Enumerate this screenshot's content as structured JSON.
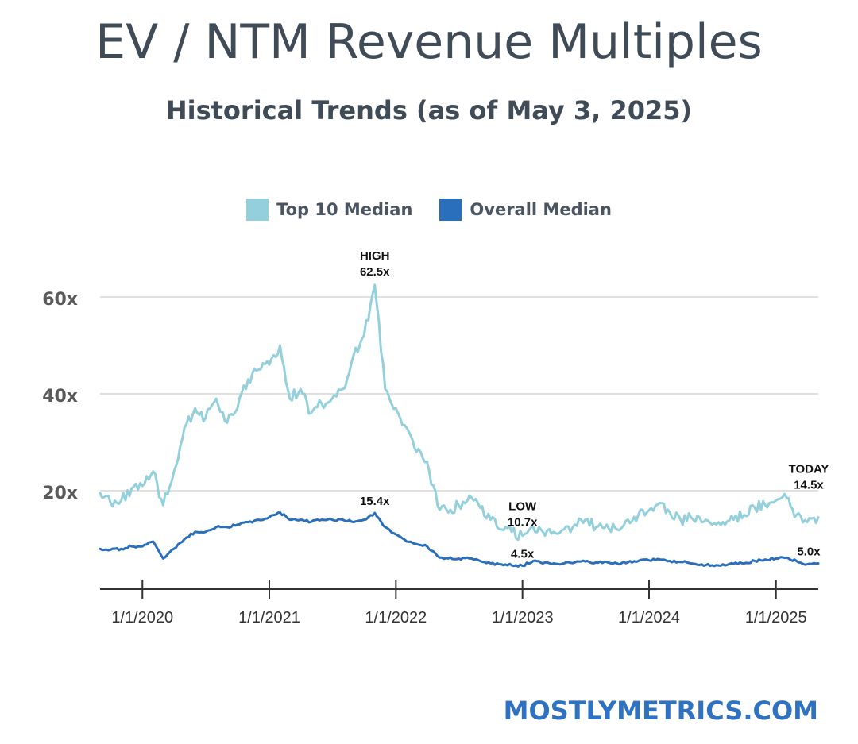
{
  "chart_data": {
    "type": "line",
    "title": "EV / NTM Revenue Multiples",
    "subtitle": "Historical Trends (as of May 3, 2025)",
    "x_ticks": [
      "1/1/2020",
      "1/1/2021",
      "1/1/2022",
      "1/1/2023",
      "1/1/2024",
      "1/1/2025"
    ],
    "x_range": [
      "2019-09-01",
      "2025-05-03"
    ],
    "y_ticks": [
      {
        "value": 20,
        "label": "20x"
      },
      {
        "value": 40,
        "label": "40x"
      },
      {
        "value": 60,
        "label": "60x"
      }
    ],
    "ylim": [
      0,
      65
    ],
    "grid": true,
    "legend_position": "top-center",
    "series": [
      {
        "name": "Top 10 Median",
        "color": "#93d0dc",
        "points": [
          [
            "2019-09-01",
            19.5
          ],
          [
            "2019-10-01",
            17.5
          ],
          [
            "2019-11-01",
            18.0
          ],
          [
            "2019-12-01",
            20.5
          ],
          [
            "2020-01-01",
            21.0
          ],
          [
            "2020-02-01",
            24.0
          ],
          [
            "2020-03-01",
            17.0
          ],
          [
            "2020-04-01",
            24.0
          ],
          [
            "2020-05-01",
            33.0
          ],
          [
            "2020-06-01",
            37.0
          ],
          [
            "2020-07-01",
            35.0
          ],
          [
            "2020-08-01",
            39.0
          ],
          [
            "2020-09-01",
            34.0
          ],
          [
            "2020-10-01",
            37.0
          ],
          [
            "2020-11-01",
            43.0
          ],
          [
            "2020-12-01",
            45.0
          ],
          [
            "2021-01-01",
            46.0
          ],
          [
            "2021-02-01",
            50.0
          ],
          [
            "2021-03-01",
            39.0
          ],
          [
            "2021-04-01",
            41.0
          ],
          [
            "2021-05-01",
            36.0
          ],
          [
            "2021-06-01",
            38.0
          ],
          [
            "2021-07-01",
            39.0
          ],
          [
            "2021-08-01",
            41.0
          ],
          [
            "2021-09-01",
            48.0
          ],
          [
            "2021-10-01",
            52.0
          ],
          [
            "2021-11-01",
            62.5
          ],
          [
            "2021-12-01",
            41.0
          ],
          [
            "2022-01-01",
            37.0
          ],
          [
            "2022-02-01",
            33.0
          ],
          [
            "2022-03-01",
            28.0
          ],
          [
            "2022-04-01",
            26.0
          ],
          [
            "2022-05-01",
            17.0
          ],
          [
            "2022-06-01",
            15.5
          ],
          [
            "2022-07-01",
            17.0
          ],
          [
            "2022-08-01",
            19.0
          ],
          [
            "2022-09-01",
            16.5
          ],
          [
            "2022-10-01",
            14.0
          ],
          [
            "2022-11-01",
            12.0
          ],
          [
            "2022-12-01",
            11.5
          ],
          [
            "2023-01-01",
            10.7
          ],
          [
            "2023-02-01",
            12.5
          ],
          [
            "2023-03-01",
            11.5
          ],
          [
            "2023-04-01",
            11.5
          ],
          [
            "2023-05-01",
            12.0
          ],
          [
            "2023-06-01",
            13.0
          ],
          [
            "2023-07-01",
            14.0
          ],
          [
            "2023-08-01",
            12.5
          ],
          [
            "2023-09-01",
            13.0
          ],
          [
            "2023-10-01",
            12.0
          ],
          [
            "2023-11-01",
            14.0
          ],
          [
            "2023-12-01",
            15.0
          ],
          [
            "2024-01-01",
            16.0
          ],
          [
            "2024-02-01",
            17.5
          ],
          [
            "2024-03-01",
            15.5
          ],
          [
            "2024-04-01",
            14.0
          ],
          [
            "2024-05-01",
            14.5
          ],
          [
            "2024-06-01",
            13.5
          ],
          [
            "2024-07-01",
            13.0
          ],
          [
            "2024-08-01",
            13.5
          ],
          [
            "2024-09-01",
            14.0
          ],
          [
            "2024-10-01",
            15.0
          ],
          [
            "2024-11-01",
            16.5
          ],
          [
            "2024-12-01",
            17.0
          ],
          [
            "2025-01-01",
            18.0
          ],
          [
            "2025-02-01",
            18.5
          ],
          [
            "2025-03-01",
            15.0
          ],
          [
            "2025-04-01",
            13.5
          ],
          [
            "2025-05-03",
            14.5
          ]
        ]
      },
      {
        "name": "Overall Median",
        "color": "#2a6fbb",
        "points": [
          [
            "2019-09-01",
            8.0
          ],
          [
            "2019-10-01",
            7.8
          ],
          [
            "2019-11-01",
            8.0
          ],
          [
            "2019-12-01",
            8.5
          ],
          [
            "2020-01-01",
            8.5
          ],
          [
            "2020-02-01",
            9.5
          ],
          [
            "2020-03-01",
            6.0
          ],
          [
            "2020-04-01",
            8.0
          ],
          [
            "2020-05-01",
            10.0
          ],
          [
            "2020-06-01",
            11.5
          ],
          [
            "2020-07-01",
            11.5
          ],
          [
            "2020-08-01",
            12.5
          ],
          [
            "2020-09-01",
            12.5
          ],
          [
            "2020-10-01",
            13.0
          ],
          [
            "2020-11-01",
            13.5
          ],
          [
            "2020-12-01",
            14.0
          ],
          [
            "2021-01-01",
            14.5
          ],
          [
            "2021-02-01",
            15.5
          ],
          [
            "2021-03-01",
            14.0
          ],
          [
            "2021-04-01",
            14.0
          ],
          [
            "2021-05-01",
            13.5
          ],
          [
            "2021-06-01",
            14.0
          ],
          [
            "2021-07-01",
            14.0
          ],
          [
            "2021-08-01",
            14.0
          ],
          [
            "2021-09-01",
            13.5
          ],
          [
            "2021-10-01",
            14.0
          ],
          [
            "2021-11-01",
            15.4
          ],
          [
            "2021-12-01",
            12.5
          ],
          [
            "2022-01-01",
            11.0
          ],
          [
            "2022-02-01",
            9.5
          ],
          [
            "2022-03-01",
            9.0
          ],
          [
            "2022-04-01",
            8.5
          ],
          [
            "2022-05-01",
            6.5
          ],
          [
            "2022-06-01",
            6.0
          ],
          [
            "2022-07-01",
            6.0
          ],
          [
            "2022-08-01",
            6.0
          ],
          [
            "2022-09-01",
            5.5
          ],
          [
            "2022-10-01",
            5.0
          ],
          [
            "2022-11-01",
            4.8
          ],
          [
            "2022-12-01",
            4.6
          ],
          [
            "2023-01-01",
            4.5
          ],
          [
            "2023-02-01",
            5.5
          ],
          [
            "2023-03-01",
            5.0
          ],
          [
            "2023-04-01",
            5.0
          ],
          [
            "2023-05-01",
            5.0
          ],
          [
            "2023-06-01",
            5.2
          ],
          [
            "2023-07-01",
            5.4
          ],
          [
            "2023-08-01",
            5.2
          ],
          [
            "2023-09-01",
            5.3
          ],
          [
            "2023-10-01",
            5.0
          ],
          [
            "2023-11-01",
            5.2
          ],
          [
            "2023-12-01",
            5.5
          ],
          [
            "2024-01-01",
            5.6
          ],
          [
            "2024-02-01",
            5.8
          ],
          [
            "2024-03-01",
            5.5
          ],
          [
            "2024-04-01",
            5.3
          ],
          [
            "2024-05-01",
            5.0
          ],
          [
            "2024-06-01",
            4.8
          ],
          [
            "2024-07-01",
            4.6
          ],
          [
            "2024-08-01",
            4.8
          ],
          [
            "2024-09-01",
            4.9
          ],
          [
            "2024-10-01",
            5.0
          ],
          [
            "2024-11-01",
            5.5
          ],
          [
            "2024-12-01",
            5.8
          ],
          [
            "2025-01-01",
            6.0
          ],
          [
            "2025-02-01",
            6.2
          ],
          [
            "2025-03-01",
            5.5
          ],
          [
            "2025-04-01",
            4.8
          ],
          [
            "2025-05-03",
            5.0
          ]
        ]
      }
    ],
    "annotations": [
      {
        "lines": [
          "HIGH",
          "62.5x"
        ],
        "x": "2021-11-01",
        "y": 62.5,
        "series": "Top 10 Median"
      },
      {
        "lines": [
          "15.4x"
        ],
        "x": "2021-11-01",
        "y": 15.4,
        "series": "Overall Median"
      },
      {
        "lines": [
          "LOW",
          "10.7x"
        ],
        "x": "2023-01-01",
        "y": 10.7,
        "series": "Top 10 Median"
      },
      {
        "lines": [
          "4.5x"
        ],
        "x": "2023-01-01",
        "y": 4.5,
        "series": "Overall Median"
      },
      {
        "lines": [
          "TODAY",
          "14.5x"
        ],
        "x": "2025-05-03",
        "y": 14.5,
        "series": "Top 10 Median"
      },
      {
        "lines": [
          "5.0x"
        ],
        "x": "2025-05-03",
        "y": 5.0,
        "series": "Overall Median"
      }
    ]
  },
  "footer": {
    "brand": "MOSTLYMETRICS.COM"
  }
}
